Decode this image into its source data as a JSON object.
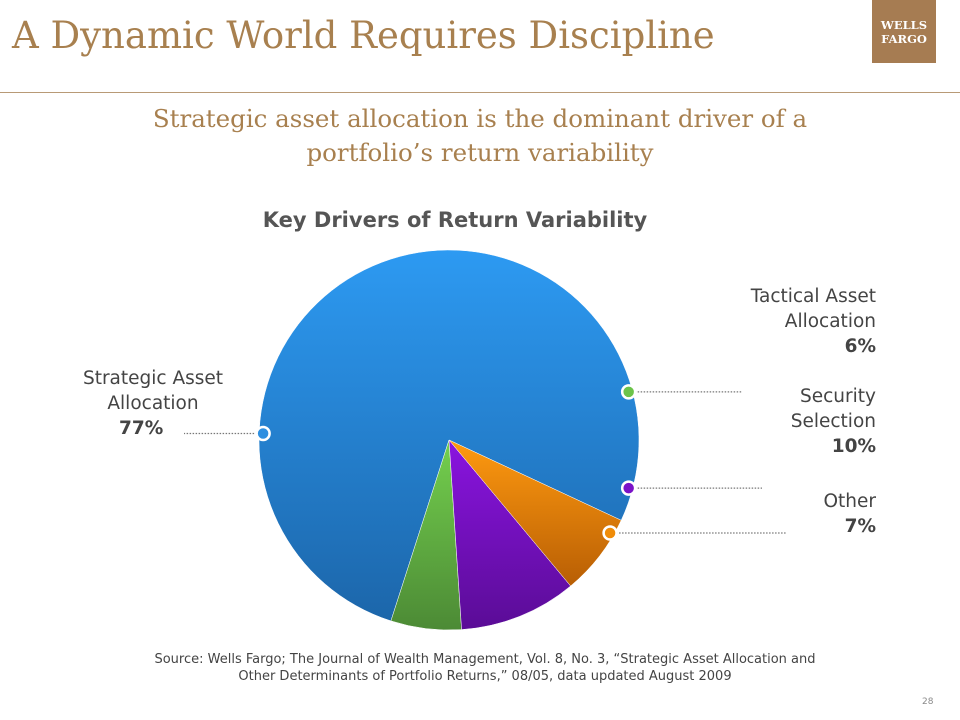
{
  "slide": {
    "title": "A Dynamic World Requires Discipline",
    "logo_line1": "WELLS",
    "logo_line2": "FARGO",
    "subtitle_line1": "Strategic asset allocation is the dominant driver of a",
    "subtitle_line2": "portfolio’s return variability",
    "source_line1": "Source: Wells Fargo; The Journal of Wealth Management, Vol. 8, No. 3, “Strategic Asset Allocation and",
    "source_line2": "Other Determinants of Portfolio Returns,” 08/05, data updated August 2009",
    "page_number": "28"
  },
  "colors": {
    "title": "#a8804f",
    "logo_bg": "#a67c52",
    "rule": "#b89a76"
  },
  "chart_data": {
    "type": "pie",
    "title": "Key Drivers of Return Variability",
    "slices": [
      {
        "name": "Strategic Asset Allocation",
        "value": 77,
        "label": "77%",
        "color": "#2e8fe0",
        "color_light": "#2d9af2",
        "color_dark": "#1c66aa"
      },
      {
        "name": "Tactical Asset Allocation",
        "value": 6,
        "label": "6%",
        "color": "#6cc34a",
        "color_light": "#74d04e",
        "color_dark": "#4c8a35"
      },
      {
        "name": "Security Selection",
        "value": 10,
        "label": "10%",
        "color": "#7a12c8",
        "color_light": "#8a14e0",
        "color_dark": "#5a0c96"
      },
      {
        "name": "Other",
        "value": 7,
        "label": "7%",
        "color": "#f08c08",
        "color_light": "#ff9a10",
        "color_dark": "#b85e04"
      }
    ],
    "label_lines": {
      "strategic": [
        "Strategic Asset",
        "Allocation"
      ],
      "tactical": [
        "Tactical Asset",
        "Allocation"
      ],
      "security": [
        "Security",
        "Selection"
      ],
      "other": [
        "Other"
      ]
    }
  }
}
